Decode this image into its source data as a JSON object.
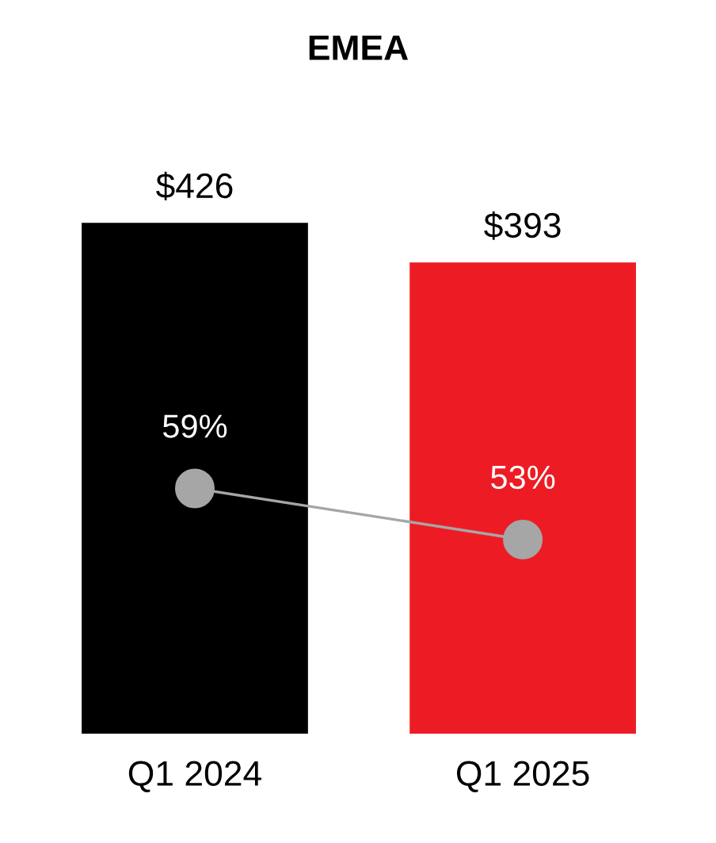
{
  "chart_data": {
    "type": "bar",
    "title": "EMEA",
    "categories": [
      "Q1 2024",
      "Q1 2025"
    ],
    "series": [
      {
        "colors": [
          "#000000",
          "#ed1c24"
        ],
        "values": [
          426,
          393
        ],
        "value_labels": [
          "$426",
          "$393"
        ]
      },
      {
        "type": "line",
        "axis": "y2",
        "color": "#a6a6a6",
        "values": [
          59,
          53
        ],
        "value_labels": [
          "59%",
          "53%"
        ],
        "marker": "circle"
      }
    ],
    "tick_labels": "x",
    "grid": false,
    "legend": false
  }
}
